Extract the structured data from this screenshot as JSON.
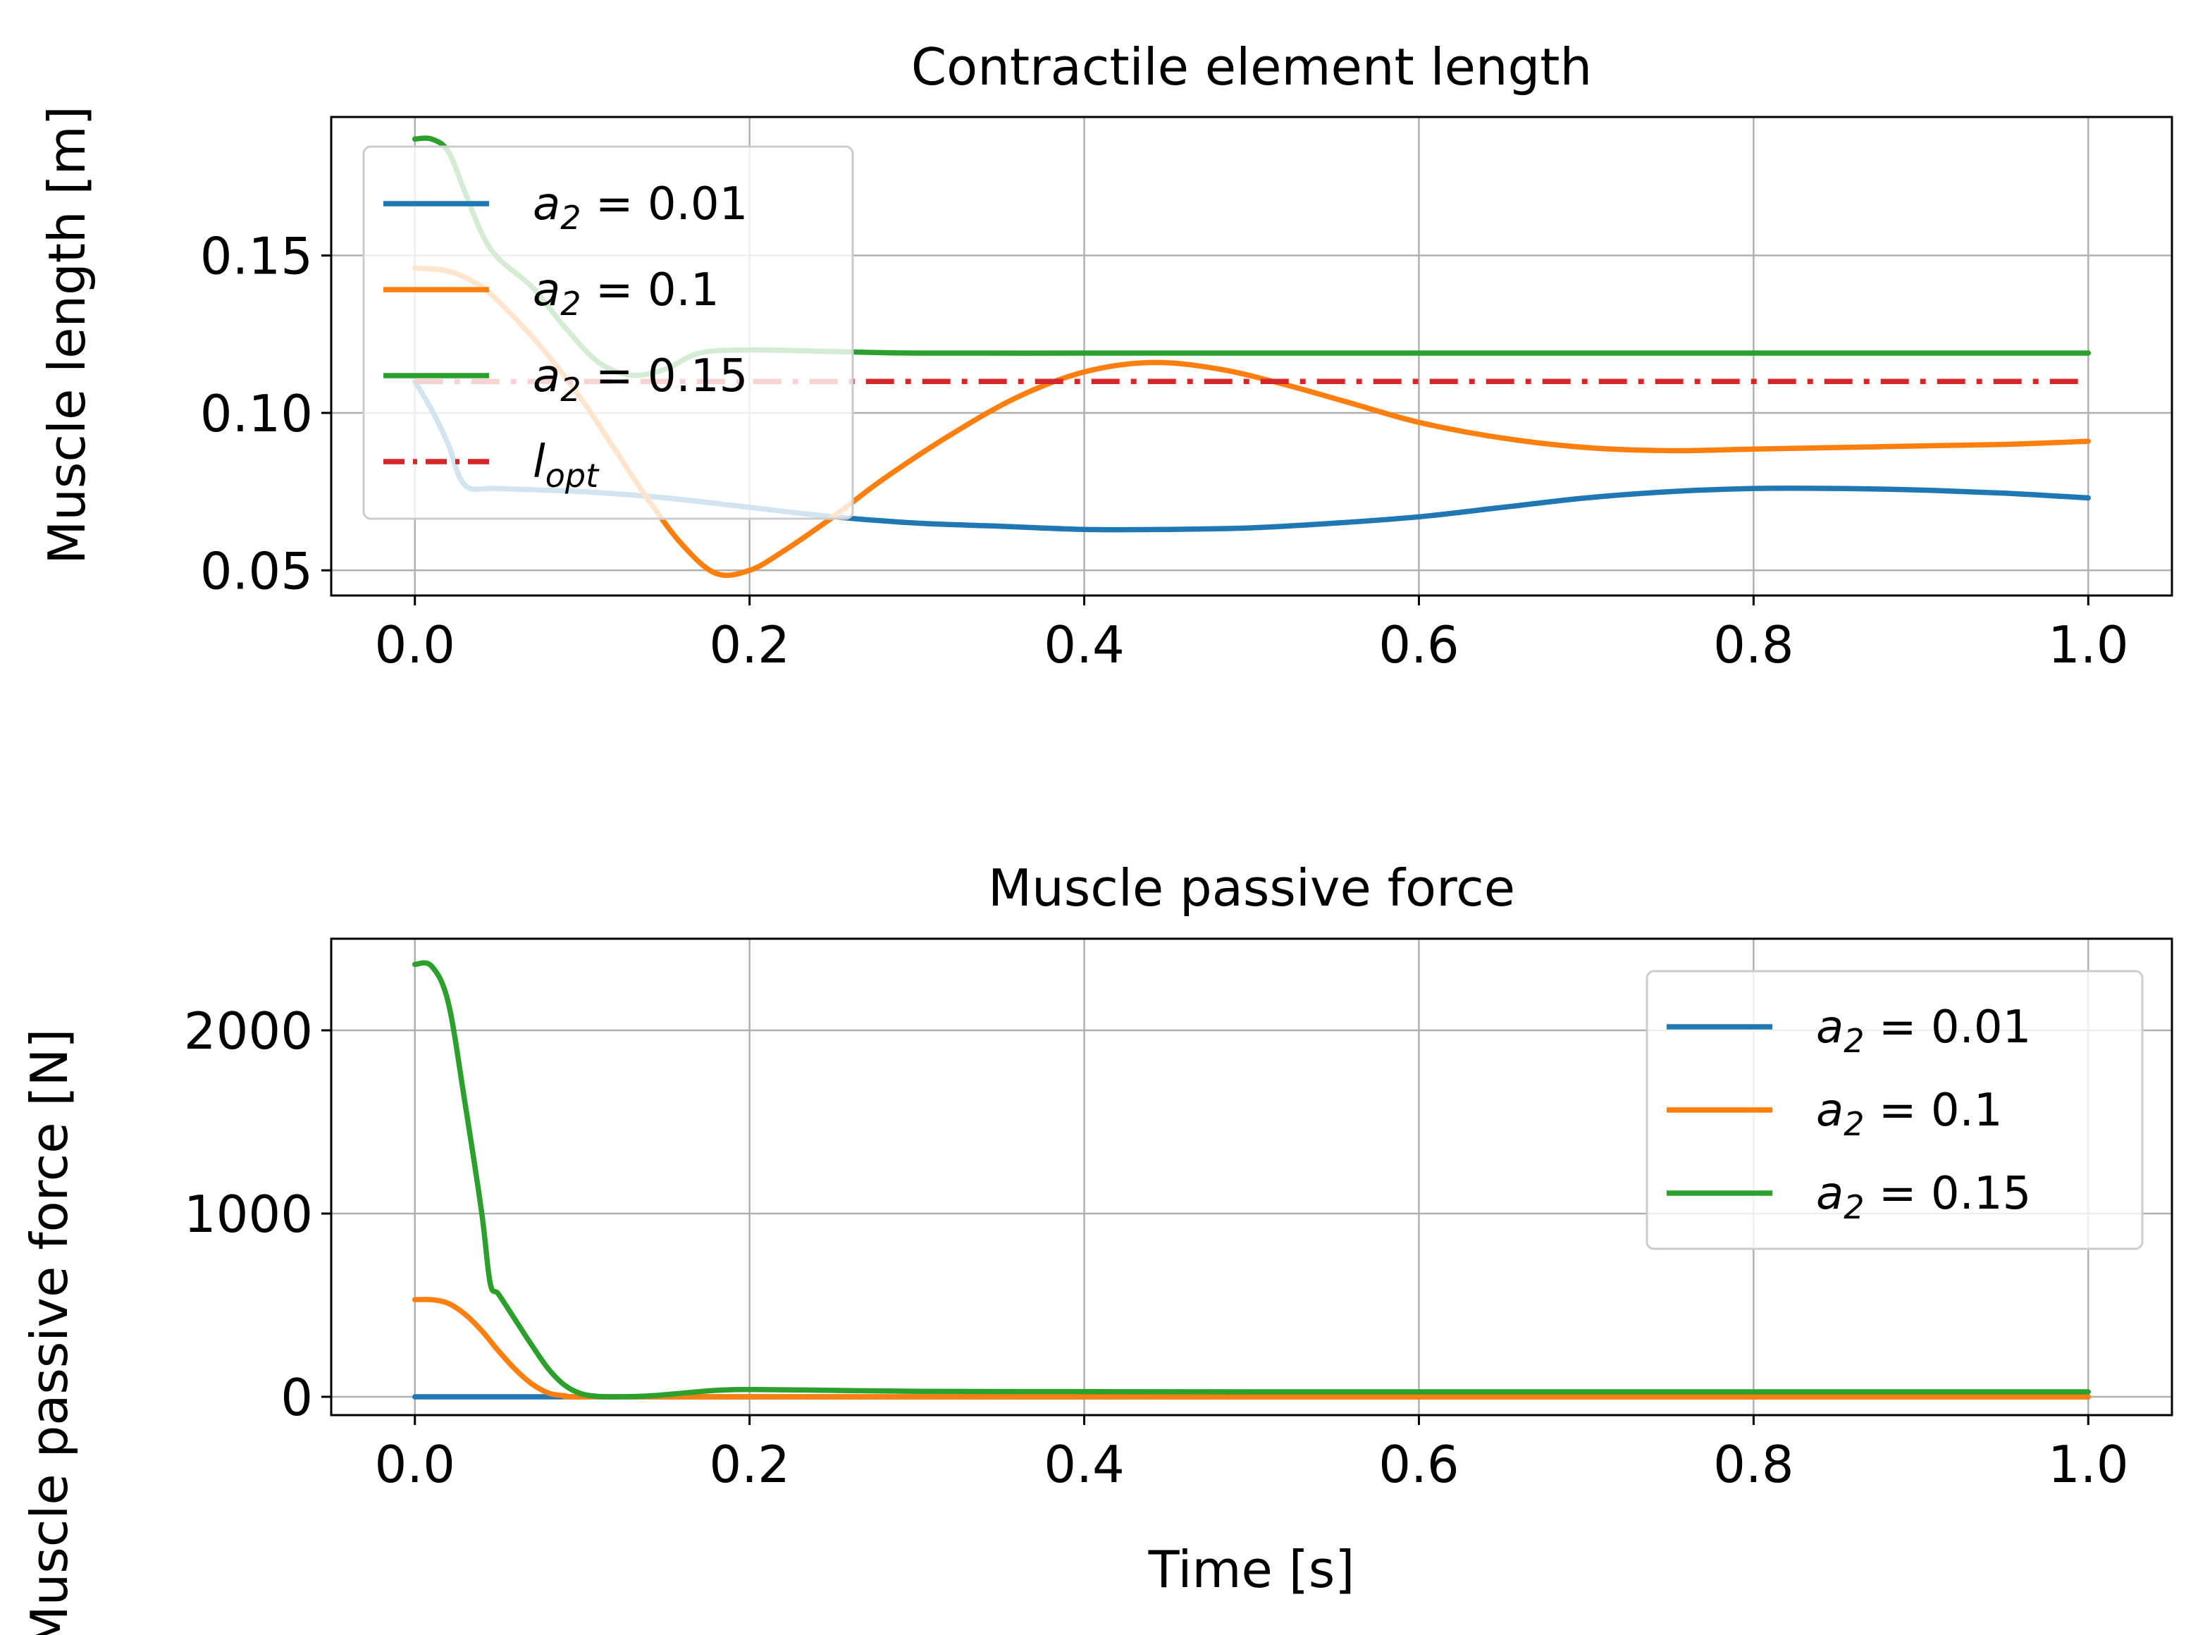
{
  "chart_data": [
    {
      "type": "line",
      "title": "Contractile element length",
      "xlabel": "",
      "ylabel": "Muscle length [m]",
      "xlim": [
        -0.05,
        1.05
      ],
      "ylim": [
        0.042,
        0.194
      ],
      "xticks": [
        0.0,
        0.2,
        0.4,
        0.6,
        0.8,
        1.0
      ],
      "xtick_labels": [
        "0.0",
        "0.2",
        "0.4",
        "0.6",
        "0.8",
        "1.0"
      ],
      "yticks": [
        0.05,
        0.1,
        0.15
      ],
      "ytick_labels": [
        "0.05",
        "0.10",
        "0.15"
      ],
      "grid": true,
      "legend_position": "upper-left",
      "series": [
        {
          "name": "a2 = 0.01",
          "legend_math": {
            "base": "a",
            "sub": "2",
            "rest": " =  0.01"
          },
          "color": "#1f77b4",
          "style": "solid",
          "x": [
            0.0,
            0.01,
            0.02,
            0.03,
            0.05,
            0.1,
            0.15,
            0.2,
            0.25,
            0.3,
            0.35,
            0.4,
            0.45,
            0.5,
            0.55,
            0.6,
            0.65,
            0.7,
            0.75,
            0.8,
            0.85,
            0.9,
            0.95,
            1.0
          ],
          "y": [
            0.11,
            0.101,
            0.09,
            0.077,
            0.076,
            0.075,
            0.073,
            0.07,
            0.067,
            0.065,
            0.064,
            0.063,
            0.063,
            0.0635,
            0.065,
            0.067,
            0.07,
            0.073,
            0.075,
            0.076,
            0.076,
            0.0755,
            0.0745,
            0.073
          ]
        },
        {
          "name": "a2 = 0.1",
          "legend_math": {
            "base": "a",
            "sub": "2",
            "rest": " =  0.1"
          },
          "color": "#ff7f0e",
          "style": "solid",
          "x": [
            0.0,
            0.02,
            0.04,
            0.06,
            0.08,
            0.1,
            0.12,
            0.14,
            0.16,
            0.18,
            0.2,
            0.22,
            0.25,
            0.28,
            0.32,
            0.36,
            0.4,
            0.44,
            0.48,
            0.52,
            0.56,
            0.6,
            0.65,
            0.7,
            0.75,
            0.8,
            0.85,
            0.9,
            0.95,
            1.0
          ],
          "y": [
            0.146,
            0.145,
            0.14,
            0.13,
            0.118,
            0.104,
            0.088,
            0.072,
            0.058,
            0.049,
            0.05,
            0.056,
            0.067,
            0.079,
            0.093,
            0.105,
            0.113,
            0.116,
            0.114,
            0.109,
            0.103,
            0.097,
            0.092,
            0.089,
            0.088,
            0.0885,
            0.089,
            0.0895,
            0.09,
            0.091
          ]
        },
        {
          "name": "a2 = 0.15",
          "legend_math": {
            "base": "a",
            "sub": "2",
            "rest": " =  0.15"
          },
          "color": "#2ca02c",
          "style": "solid",
          "x": [
            0.0,
            0.01,
            0.02,
            0.03,
            0.04,
            0.05,
            0.07,
            0.09,
            0.11,
            0.13,
            0.15,
            0.17,
            0.2,
            0.25,
            0.3,
            0.4,
            0.5,
            0.6,
            0.7,
            0.8,
            0.9,
            1.0
          ],
          "y": [
            0.187,
            0.187,
            0.183,
            0.17,
            0.157,
            0.149,
            0.14,
            0.127,
            0.116,
            0.112,
            0.114,
            0.119,
            0.12,
            0.1195,
            0.119,
            0.119,
            0.119,
            0.119,
            0.119,
            0.119,
            0.119,
            0.119
          ]
        },
        {
          "name": "l_opt",
          "legend_math": {
            "base": "l",
            "sub": "opt",
            "rest": ""
          },
          "color": "#d62728",
          "style": "dashdot",
          "x": [
            0.0,
            1.0
          ],
          "y": [
            0.11,
            0.11
          ]
        }
      ]
    },
    {
      "type": "line",
      "title": "Muscle passive force",
      "xlabel": "Time [s]",
      "ylabel": "Muscle passive force [N]",
      "xlim": [
        -0.05,
        1.05
      ],
      "ylim": [
        -100,
        2500
      ],
      "xticks": [
        0.0,
        0.2,
        0.4,
        0.6,
        0.8,
        1.0
      ],
      "xtick_labels": [
        "0.0",
        "0.2",
        "0.4",
        "0.6",
        "0.8",
        "1.0"
      ],
      "yticks": [
        0,
        1000,
        2000
      ],
      "ytick_labels": [
        "0",
        "1000",
        "2000"
      ],
      "grid": true,
      "legend_position": "upper-right",
      "series": [
        {
          "name": "a2 = 0.01",
          "legend_math": {
            "base": "a",
            "sub": "2",
            "rest": " =  0.01"
          },
          "color": "#1f77b4",
          "style": "solid",
          "x": [
            0.0,
            0.1,
            0.2,
            0.3,
            0.4,
            0.5,
            0.6,
            0.7,
            0.8,
            0.9,
            1.0
          ],
          "y": [
            0,
            0,
            0,
            0,
            0,
            0,
            0,
            0,
            0,
            0,
            0
          ]
        },
        {
          "name": "a2 = 0.1",
          "legend_math": {
            "base": "a",
            "sub": "2",
            "rest": " =  0.1"
          },
          "color": "#ff7f0e",
          "style": "solid",
          "x": [
            0.0,
            0.01,
            0.02,
            0.03,
            0.04,
            0.05,
            0.06,
            0.07,
            0.08,
            0.09,
            0.1,
            0.2,
            0.4,
            0.6,
            0.8,
            1.0
          ],
          "y": [
            530,
            530,
            510,
            450,
            360,
            250,
            150,
            70,
            20,
            5,
            0,
            0,
            0,
            0,
            0,
            0
          ]
        },
        {
          "name": "a2 = 0.15",
          "legend_math": {
            "base": "a",
            "sub": "2",
            "rest": " =  0.15"
          },
          "color": "#2ca02c",
          "style": "solid",
          "x": [
            0.0,
            0.01,
            0.02,
            0.03,
            0.04,
            0.045,
            0.05,
            0.06,
            0.07,
            0.08,
            0.09,
            0.1,
            0.11,
            0.12,
            0.14,
            0.16,
            0.18,
            0.2,
            0.25,
            0.3,
            0.4,
            0.5,
            0.6,
            0.7,
            0.8,
            0.9,
            1.0
          ],
          "y": [
            2360,
            2350,
            2150,
            1600,
            1000,
            620,
            560,
            420,
            280,
            150,
            60,
            15,
            2,
            0,
            5,
            20,
            35,
            40,
            35,
            30,
            28,
            27,
            27,
            27,
            27,
            27,
            27
          ]
        }
      ]
    }
  ]
}
